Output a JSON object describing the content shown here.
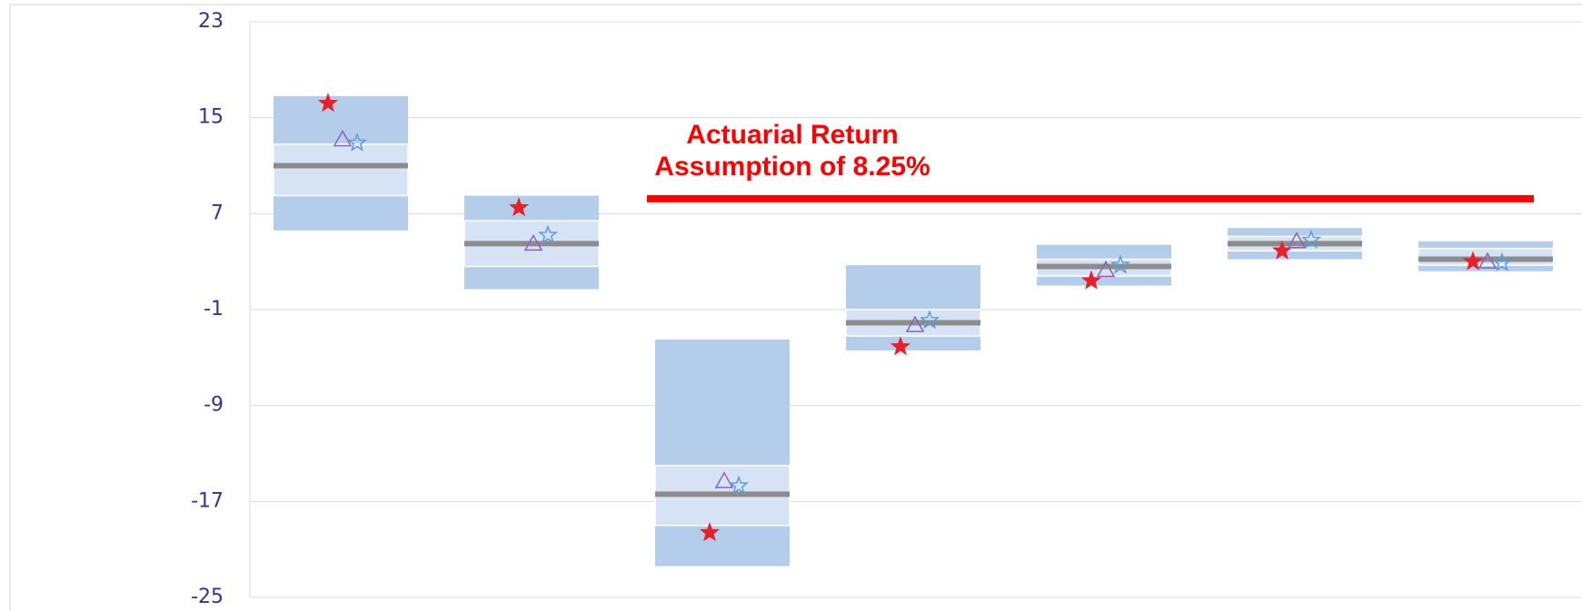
{
  "chart_data": {
    "type": "floating-box",
    "ylim": [
      -25,
      23
    ],
    "yticks": [
      -25,
      -17,
      -9,
      -1,
      7,
      15,
      23
    ],
    "grid": true,
    "boxes": {
      "color_outer": "#b3cdeb",
      "color_inner": "#d6e3f4",
      "color_median": "#8c8c8c",
      "low": [
        5.6,
        0.7,
        -22.4,
        -4.4,
        1.0,
        3.2,
        2.2
      ],
      "q1": [
        8.5,
        2.6,
        -19.0,
        -3.2,
        1.8,
        3.9,
        2.7
      ],
      "median": [
        11.0,
        4.5,
        -16.4,
        -2.1,
        2.6,
        4.5,
        3.2
      ],
      "q3": [
        12.8,
        6.4,
        -14.0,
        -1.0,
        3.2,
        5.1,
        4.1
      ],
      "high": [
        16.8,
        8.5,
        -3.5,
        2.7,
        4.4,
        5.8,
        4.7
      ]
    },
    "markers": [
      {
        "shape": "star",
        "filled": true,
        "color": "#e8202a",
        "values": [
          16.2,
          7.5,
          -19.6,
          -4.1,
          1.4,
          3.9,
          3.0
        ]
      },
      {
        "shape": "triangle",
        "filled": false,
        "color": "#8e5fb8",
        "values": [
          13.2,
          4.5,
          -15.3,
          -2.3,
          2.3,
          4.7,
          3.0
        ]
      },
      {
        "shape": "star",
        "filled": false,
        "color": "#5b9be0",
        "values": [
          12.9,
          5.2,
          -15.7,
          -1.9,
          2.7,
          4.8,
          2.9
        ]
      }
    ],
    "reference_line": {
      "value": 8.25,
      "color": "#ff0000"
    },
    "annotation": [
      "Actuarial Return",
      "Assumption of 8.25%"
    ]
  }
}
